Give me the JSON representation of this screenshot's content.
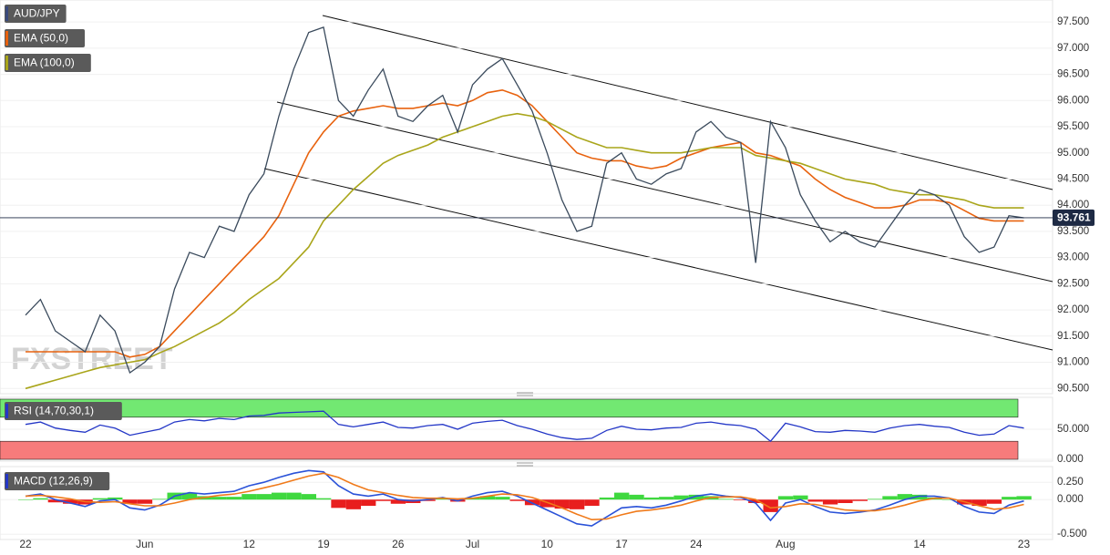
{
  "chart_data": [
    {
      "type": "line",
      "title": "AUD/JPY",
      "watermark": "FXSTREET",
      "color": "#3a4a5c",
      "categories": [
        "22",
        null,
        null,
        null,
        null,
        null,
        null,
        null,
        "Jun",
        null,
        null,
        null,
        null,
        null,
        null,
        "12",
        null,
        null,
        null,
        null,
        "19",
        null,
        null,
        null,
        null,
        "26",
        null,
        null,
        null,
        null,
        "Jul",
        null,
        null,
        null,
        null,
        "10",
        null,
        null,
        null,
        null,
        "17",
        null,
        null,
        null,
        null,
        "24",
        null,
        null,
        null,
        null,
        null,
        "Aug",
        null,
        null,
        null,
        null,
        null,
        null,
        null,
        null,
        "14",
        null,
        null,
        null,
        null,
        null,
        null,
        "23"
      ],
      "values": [
        91.9,
        92.2,
        91.6,
        91.4,
        91.2,
        91.9,
        91.6,
        90.8,
        91.0,
        91.3,
        92.4,
        93.1,
        93.0,
        93.6,
        93.5,
        94.2,
        94.6,
        95.7,
        96.6,
        97.3,
        97.4,
        96.0,
        95.7,
        96.2,
        96.6,
        95.7,
        95.6,
        95.9,
        96.1,
        95.4,
        96.3,
        96.6,
        96.8,
        96.3,
        95.8,
        95.0,
        94.1,
        93.5,
        93.6,
        94.8,
        95.0,
        94.5,
        94.4,
        94.6,
        94.7,
        95.4,
        95.6,
        95.3,
        95.2,
        92.9,
        95.6,
        95.1,
        94.2,
        93.7,
        93.3,
        93.5,
        93.3,
        93.2,
        93.6,
        94.0,
        94.3,
        94.2,
        94.0,
        93.4,
        93.1,
        93.2,
        93.8,
        93.76
      ],
      "series": [
        {
          "name": "EMA (50,0)",
          "color": "#e8620e",
          "values": [
            91.2,
            91.2,
            91.2,
            91.2,
            91.2,
            91.2,
            91.2,
            91.1,
            91.15,
            91.3,
            91.6,
            91.9,
            92.2,
            92.5,
            92.8,
            93.1,
            93.4,
            93.8,
            94.4,
            95.0,
            95.4,
            95.7,
            95.8,
            95.85,
            95.9,
            95.85,
            95.85,
            95.9,
            95.95,
            95.9,
            96.0,
            96.15,
            96.2,
            96.1,
            95.9,
            95.6,
            95.3,
            95.0,
            94.9,
            94.85,
            94.85,
            94.75,
            94.7,
            94.75,
            94.9,
            95.0,
            95.1,
            95.15,
            95.2,
            95.0,
            94.95,
            94.85,
            94.75,
            94.5,
            94.3,
            94.15,
            94.05,
            93.95,
            93.95,
            94.0,
            94.1,
            94.1,
            94.05,
            93.9,
            93.75,
            93.7,
            93.7,
            93.7
          ]
        },
        {
          "name": "EMA (100,0)",
          "color": "#a9a51a",
          "values": [
            90.5,
            90.58,
            90.66,
            90.74,
            90.82,
            90.9,
            90.95,
            91.0,
            91.05,
            91.18,
            91.3,
            91.45,
            91.6,
            91.75,
            91.95,
            92.2,
            92.4,
            92.6,
            92.9,
            93.2,
            93.7,
            94.0,
            94.3,
            94.55,
            94.8,
            94.95,
            95.05,
            95.15,
            95.3,
            95.4,
            95.5,
            95.6,
            95.7,
            95.75,
            95.7,
            95.6,
            95.45,
            95.3,
            95.2,
            95.1,
            95.1,
            95.05,
            95.0,
            95.0,
            95.0,
            95.05,
            95.1,
            95.1,
            95.1,
            94.95,
            94.9,
            94.85,
            94.8,
            94.7,
            94.6,
            94.5,
            94.45,
            94.4,
            94.3,
            94.25,
            94.2,
            94.2,
            94.15,
            94.1,
            94.0,
            93.95,
            93.95,
            93.95
          ]
        }
      ],
      "last_price": {
        "value": 93.761,
        "label": "93.761"
      },
      "ylim": [
        90.4,
        97.92
      ],
      "grid": true,
      "yticks": [
        {
          "value": 90.5,
          "label": "90.500"
        },
        {
          "value": 91.0,
          "label": "91.000"
        },
        {
          "value": 91.5,
          "label": "91.500"
        },
        {
          "value": 92.0,
          "label": "92.000"
        },
        {
          "value": 92.5,
          "label": "92.500"
        },
        {
          "value": 93.0,
          "label": "93.000"
        },
        {
          "value": 93.5,
          "label": "93.500"
        },
        {
          "value": 94.0,
          "label": "94.000"
        },
        {
          "value": 94.5,
          "label": "94.500"
        },
        {
          "value": 95.0,
          "label": "95.000"
        },
        {
          "value": 95.5,
          "label": "95.500"
        },
        {
          "value": 96.0,
          "label": "96.000"
        },
        {
          "value": 96.5,
          "label": "96.500"
        },
        {
          "value": 97.0,
          "label": "97.000"
        },
        {
          "value": 97.5,
          "label": "97.500"
        }
      ]
    },
    {
      "type": "line",
      "title": "RSI (14,70,30,1)",
      "color": "#2437c7",
      "values": [
        58,
        62,
        52,
        48,
        45,
        57,
        52,
        40,
        45,
        50,
        62,
        66,
        64,
        68,
        66,
        72,
        73,
        77,
        78,
        79,
        80,
        58,
        54,
        58,
        62,
        53,
        52,
        56,
        58,
        50,
        60,
        63,
        65,
        56,
        50,
        42,
        36,
        33,
        35,
        48,
        55,
        50,
        49,
        52,
        53,
        60,
        62,
        58,
        56,
        50,
        30,
        60,
        54,
        46,
        45,
        48,
        47,
        45,
        52,
        56,
        58,
        55,
        53,
        45,
        40,
        42,
        56,
        52
      ],
      "bands": [
        {
          "from": 70,
          "to": 100,
          "color": "#72e872"
        },
        {
          "from": 0,
          "to": 30,
          "color": "#f77b7b"
        }
      ],
      "ylim": [
        0,
        100
      ],
      "grid": true,
      "yticks": [
        {
          "value": 50,
          "label": "50.000"
        },
        {
          "value": 0,
          "label": "0.000"
        }
      ]
    },
    {
      "type": "line",
      "title": "MACD (12,26,9)",
      "color": "#2437c7",
      "series": [
        {
          "color": "#2a52d8",
          "values": [
            0.05,
            0.08,
            0.0,
            -0.05,
            -0.1,
            -0.02,
            0.0,
            -0.12,
            -0.15,
            -0.08,
            0.05,
            0.1,
            0.08,
            0.1,
            0.12,
            0.2,
            0.25,
            0.32,
            0.38,
            0.42,
            0.4,
            0.2,
            0.08,
            0.05,
            0.08,
            0.0,
            -0.02,
            0.0,
            0.03,
            -0.02,
            0.05,
            0.1,
            0.12,
            0.05,
            -0.05,
            -0.15,
            -0.25,
            -0.35,
            -0.38,
            -0.25,
            -0.12,
            -0.1,
            -0.12,
            -0.08,
            -0.02,
            0.05,
            0.08,
            0.05,
            0.03,
            -0.05,
            -0.3,
            -0.05,
            0.0,
            -0.1,
            -0.18,
            -0.2,
            -0.18,
            -0.15,
            -0.08,
            0.0,
            0.05,
            0.05,
            0.02,
            -0.1,
            -0.18,
            -0.2,
            -0.08,
            -0.02
          ]
        },
        {
          "color": "#f07a1a",
          "values": [
            0.05,
            0.06,
            0.04,
            0.01,
            -0.03,
            -0.04,
            -0.03,
            -0.06,
            -0.09,
            -0.09,
            -0.05,
            0.0,
            0.03,
            0.06,
            0.08,
            0.12,
            0.17,
            0.22,
            0.28,
            0.34,
            0.38,
            0.32,
            0.22,
            0.14,
            0.1,
            0.06,
            0.03,
            0.02,
            0.02,
            0.01,
            0.02,
            0.05,
            0.08,
            0.07,
            0.03,
            -0.04,
            -0.12,
            -0.21,
            -0.29,
            -0.28,
            -0.22,
            -0.17,
            -0.15,
            -0.12,
            -0.08,
            -0.02,
            0.03,
            0.04,
            0.04,
            0.0,
            -0.12,
            -0.1,
            -0.06,
            -0.07,
            -0.11,
            -0.15,
            -0.16,
            -0.16,
            -0.13,
            -0.08,
            -0.02,
            0.02,
            0.02,
            -0.03,
            -0.09,
            -0.14,
            -0.12,
            -0.07
          ]
        },
        {
          "type": "bar",
          "positive_color": "#3fd83f",
          "negative_color": "#e81e1e",
          "values": [
            0.0,
            0.02,
            -0.04,
            -0.06,
            -0.07,
            0.02,
            0.03,
            -0.06,
            -0.06,
            0.01,
            0.1,
            0.1,
            0.05,
            0.04,
            0.04,
            0.08,
            0.08,
            0.1,
            0.1,
            0.08,
            0.02,
            -0.12,
            -0.14,
            -0.09,
            -0.02,
            -0.06,
            -0.05,
            -0.02,
            0.01,
            -0.03,
            0.03,
            0.05,
            0.04,
            -0.02,
            -0.08,
            -0.11,
            -0.13,
            -0.14,
            -0.09,
            0.03,
            0.1,
            0.07,
            0.03,
            0.04,
            0.06,
            0.07,
            0.05,
            0.01,
            -0.01,
            -0.05,
            -0.18,
            0.05,
            0.06,
            -0.03,
            -0.07,
            -0.05,
            -0.02,
            0.01,
            0.05,
            0.08,
            0.07,
            0.03,
            0.0,
            -0.07,
            -0.09,
            -0.06,
            0.04,
            0.05
          ]
        }
      ],
      "ylim": [
        -0.55,
        0.45
      ],
      "grid": true,
      "yticks": [
        {
          "value": 0.25,
          "label": "0.250"
        },
        {
          "value": 0.0,
          "label": "0.000"
        },
        {
          "value": -0.5,
          "label": "-0.500"
        }
      ]
    }
  ]
}
